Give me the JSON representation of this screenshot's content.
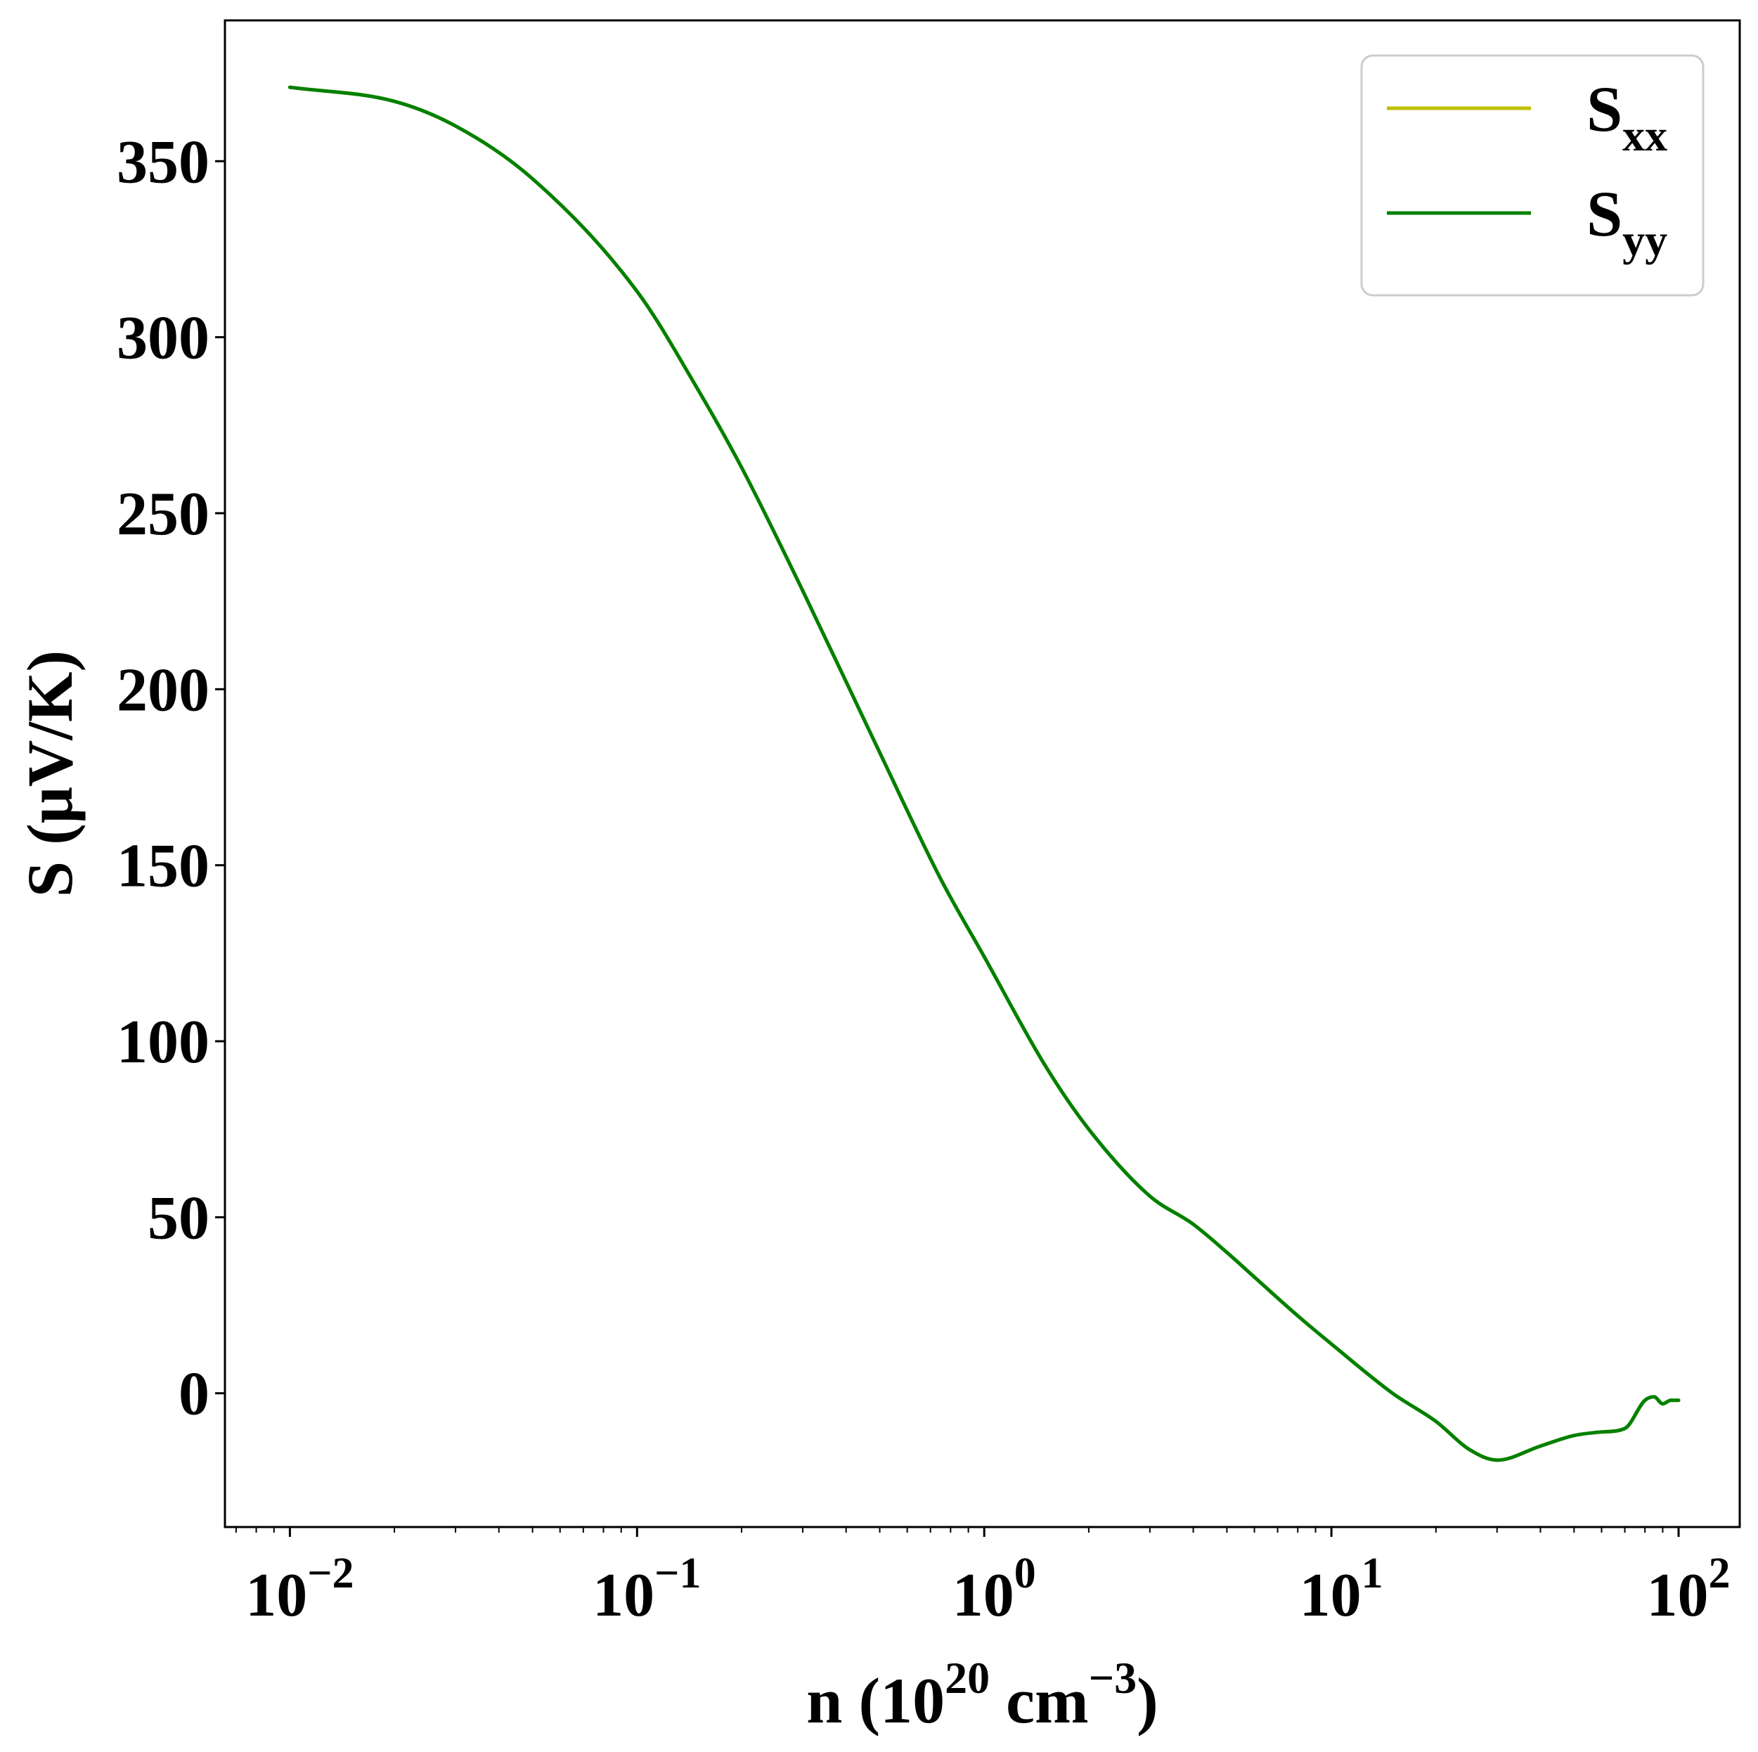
{
  "chart_data": {
    "type": "line",
    "title": "",
    "xscale": "log",
    "xlim": [
      0.0065,
      150
    ],
    "ylim": [
      -38,
      390
    ],
    "xlabel": {
      "prefix": "n (10",
      "sup1": "20",
      "middle": " cm",
      "sup2": "−3",
      "suffix": ")"
    },
    "ylabel": "S (μV/K)",
    "x_ticks": [
      {
        "value": 0.01,
        "base": "10",
        "exp": "−2"
      },
      {
        "value": 0.1,
        "base": "10",
        "exp": "−1"
      },
      {
        "value": 1,
        "base": "10",
        "exp": "0"
      },
      {
        "value": 10,
        "base": "10",
        "exp": "1"
      },
      {
        "value": 100,
        "base": "10",
        "exp": "2"
      }
    ],
    "y_ticks": [
      {
        "value": 0,
        "label": "0"
      },
      {
        "value": 50,
        "label": "50"
      },
      {
        "value": 100,
        "label": "100"
      },
      {
        "value": 150,
        "label": "150"
      },
      {
        "value": 200,
        "label": "200"
      },
      {
        "value": 250,
        "label": "250"
      },
      {
        "value": 300,
        "label": "300"
      },
      {
        "value": 350,
        "label": "350"
      }
    ],
    "grid": false,
    "legend_position": "top-right",
    "series": [
      {
        "name": "S_xx",
        "legend_base": "S",
        "legend_sub": "xx",
        "color": "#bfbf00",
        "x": [
          0.01,
          0.02,
          0.03,
          0.05,
          0.1,
          0.15,
          0.2,
          0.3,
          0.5,
          0.75,
          1,
          1.5,
          2,
          3,
          4,
          5,
          6,
          8,
          10,
          15,
          20,
          25,
          30,
          40,
          50,
          60,
          70,
          80,
          85,
          90,
          95,
          100
        ],
        "y": [
          371,
          367,
          360,
          345,
          313,
          285,
          263,
          228,
          182,
          146,
          124,
          93,
          75,
          56,
          48,
          40,
          33,
          22,
          14,
          0,
          -8,
          -16,
          -19,
          -15,
          -12,
          -11,
          -10,
          -2,
          -1,
          -3,
          -2,
          -2
        ]
      },
      {
        "name": "S_yy",
        "legend_base": "S",
        "legend_sub": "yy",
        "color": "#008000",
        "x": [
          0.01,
          0.02,
          0.03,
          0.05,
          0.1,
          0.15,
          0.2,
          0.3,
          0.5,
          0.75,
          1,
          1.5,
          2,
          3,
          4,
          5,
          6,
          8,
          10,
          15,
          20,
          25,
          30,
          40,
          50,
          60,
          70,
          80,
          85,
          90,
          95,
          100
        ],
        "y": [
          371,
          367,
          360,
          345,
          313,
          285,
          263,
          228,
          182,
          146,
          124,
          93,
          75,
          56,
          48,
          40,
          33,
          22,
          14,
          0,
          -8,
          -16,
          -19,
          -15,
          -12,
          -11,
          -10,
          -2,
          -1,
          -3,
          -2,
          -2
        ]
      }
    ]
  }
}
